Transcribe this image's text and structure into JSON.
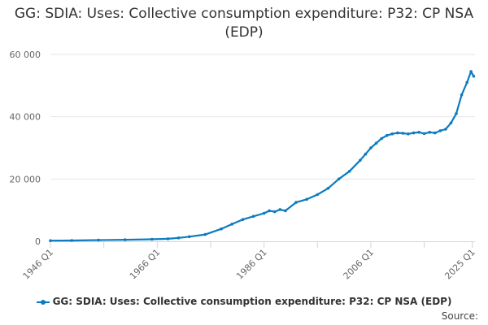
{
  "title": "GG: SDIA: Uses: Collective consumption expenditure: P32: CP NSA (EDP)",
  "source_label": "Source:",
  "colors": {
    "series": "#0c7bc0",
    "grid": "#e6e6e6",
    "axis": "#ccd6eb"
  },
  "chart_data": {
    "type": "line",
    "title": "GG: SDIA: Uses: Collective consumption expenditure: P32: CP NSA (EDP)",
    "xlabel": "",
    "ylabel": "",
    "x_range": [
      1946,
      2025.5
    ],
    "ylim": [
      0,
      60000
    ],
    "y_ticks": [
      0,
      20000,
      40000,
      60000
    ],
    "y_tick_labels": [
      "0",
      "20 000",
      "40 000",
      "60 000"
    ],
    "x_tick_labels": [
      "1946 Q1",
      "1966 Q1",
      "1986 Q1",
      "2006 Q1",
      "2025 Q1"
    ],
    "x_ticks": [
      1946,
      1966,
      1986,
      2006,
      2025
    ],
    "grid": "horizontal",
    "legend_position": "bottom",
    "series": [
      {
        "name": "GG: SDIA: Uses: Collective consumption expenditure: P32: CP NSA (EDP)",
        "x": [
          1946,
          1950,
          1955,
          1960,
          1965,
          1968,
          1970,
          1972,
          1975,
          1978,
          1980,
          1982,
          1984,
          1986,
          1987,
          1988,
          1989,
          1990,
          1992,
          1994,
          1996,
          1998,
          2000,
          2002,
          2004,
          2005,
          2006,
          2007,
          2008,
          2009,
          2010,
          2011,
          2012,
          2013,
          2014,
          2015,
          2016,
          2017,
          2018,
          2019,
          2020,
          2021,
          2022,
          2023,
          2024,
          2024.75,
          2025.25
        ],
        "y": [
          200,
          250,
          400,
          500,
          650,
          800,
          1100,
          1500,
          2200,
          4000,
          5500,
          7000,
          8000,
          9000,
          9800,
          9500,
          10200,
          9800,
          12500,
          13500,
          15000,
          17000,
          20000,
          22500,
          26000,
          28000,
          30000,
          31500,
          33000,
          34000,
          34500,
          34800,
          34700,
          34500,
          34800,
          35000,
          34600,
          35000,
          34800,
          35500,
          36000,
          38000,
          41000,
          47000,
          51000,
          54500,
          53000
        ]
      }
    ]
  }
}
